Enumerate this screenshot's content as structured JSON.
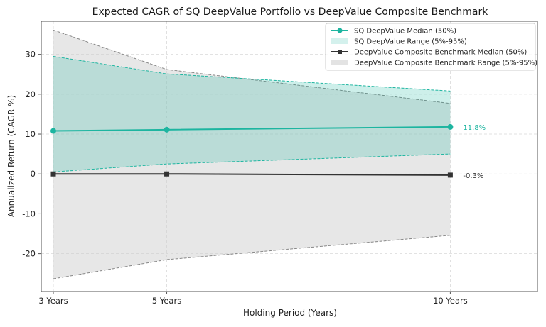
{
  "chart_data": {
    "type": "line",
    "title": "Expected CAGR of SQ DeepValue Portfolio vs DeepValue Composite Benchmark",
    "xlabel": "Holding Period (Years)",
    "ylabel": "Annualized Return (CAGR %)",
    "x": [
      3,
      5,
      10
    ],
    "x_tick_labels": [
      "3 Years",
      "5 Years",
      "10 Years"
    ],
    "xlim": [
      3,
      11.75
    ],
    "ylim": [
      -29.5,
      38.3
    ],
    "y_ticks": [
      -20,
      -10,
      0,
      10,
      20,
      30
    ],
    "grid": true,
    "legend_position": "top-right",
    "series": [
      {
        "name": "SQ DeepValue Median (50%)",
        "kind": "line",
        "marker": "circle",
        "color": "#1db5a0",
        "values": [
          10.8,
          11.1,
          11.8
        ]
      },
      {
        "name": "SQ DeepValue Range (5%-95%)",
        "kind": "band",
        "color": "#1db5a0",
        "fill": "#c8ede8",
        "lower": [
          0.5,
          2.5,
          5.0
        ],
        "upper": [
          29.5,
          25.1,
          20.8
        ]
      },
      {
        "name": "DeepValue Composite Benchmark Median (50%)",
        "kind": "line",
        "marker": "square",
        "color": "#333333",
        "values": [
          0.0,
          0.0,
          -0.3
        ]
      },
      {
        "name": "DeepValue Composite Benchmark Range (5%-95%)",
        "kind": "band",
        "color": "#888888",
        "fill": "#e3e3e3",
        "lower": [
          -26.3,
          -21.5,
          -15.4
        ],
        "upper": [
          36.1,
          26.2,
          17.7
        ]
      }
    ],
    "annotations": [
      {
        "text": "11.8%",
        "series": "SQ DeepValue Median (50%)",
        "x": 10,
        "y": 11.8,
        "color": "#1db5a0"
      },
      {
        "text": "-0.3%",
        "series": "DeepValue Composite Benchmark Median (50%)",
        "x": 10,
        "y": -0.3,
        "color": "#333333"
      }
    ]
  }
}
